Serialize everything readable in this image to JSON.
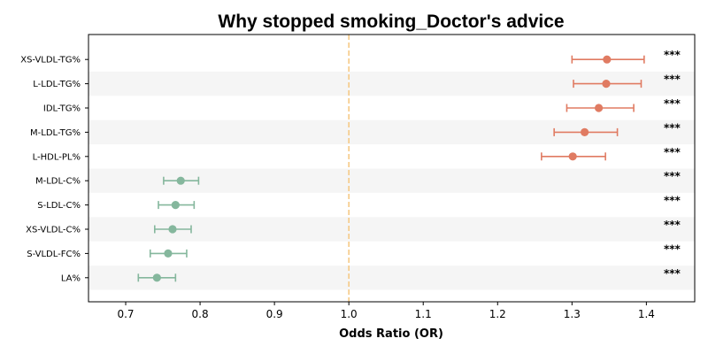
{
  "chart_data": {
    "type": "forest",
    "title": "Why stopped smoking_Doctor's advice",
    "xlabel": "Odds Ratio (OR)",
    "xlim": [
      0.65,
      1.465
    ],
    "xticks": [
      "0.7",
      "0.8",
      "0.9",
      "1.0",
      "1.1",
      "1.2",
      "1.3",
      "1.4"
    ],
    "reference_line": 1.0,
    "reference_color": "#f5c77e",
    "colors": {
      "increase": "#e07b62",
      "decrease": "#85b79d",
      "band": "#f5f5f5"
    },
    "rows": [
      {
        "label": "XS-VLDL-TG%",
        "or": 1.347,
        "ci_low": 1.3,
        "ci_high": 1.397,
        "sig": "***"
      },
      {
        "label": "L-LDL-TG%",
        "or": 1.346,
        "ci_low": 1.302,
        "ci_high": 1.393,
        "sig": "***"
      },
      {
        "label": "IDL-TG%",
        "or": 1.336,
        "ci_low": 1.293,
        "ci_high": 1.383,
        "sig": "***"
      },
      {
        "label": "M-LDL-TG%",
        "or": 1.317,
        "ci_low": 1.276,
        "ci_high": 1.361,
        "sig": "***"
      },
      {
        "label": "L-HDL-PL%",
        "or": 1.301,
        "ci_low": 1.259,
        "ci_high": 1.345,
        "sig": "***"
      },
      {
        "label": "M-LDL-C%",
        "or": 0.774,
        "ci_low": 0.751,
        "ci_high": 0.798,
        "sig": "***"
      },
      {
        "label": "S-LDL-C%",
        "or": 0.767,
        "ci_low": 0.744,
        "ci_high": 0.792,
        "sig": "***"
      },
      {
        "label": "XS-VLDL-C%",
        "or": 0.763,
        "ci_low": 0.739,
        "ci_high": 0.788,
        "sig": "***"
      },
      {
        "label": "S-VLDL-FC%",
        "or": 0.757,
        "ci_low": 0.733,
        "ci_high": 0.782,
        "sig": "***"
      },
      {
        "label": "LA%",
        "or": 0.742,
        "ci_low": 0.717,
        "ci_high": 0.767,
        "sig": "***"
      }
    ]
  }
}
